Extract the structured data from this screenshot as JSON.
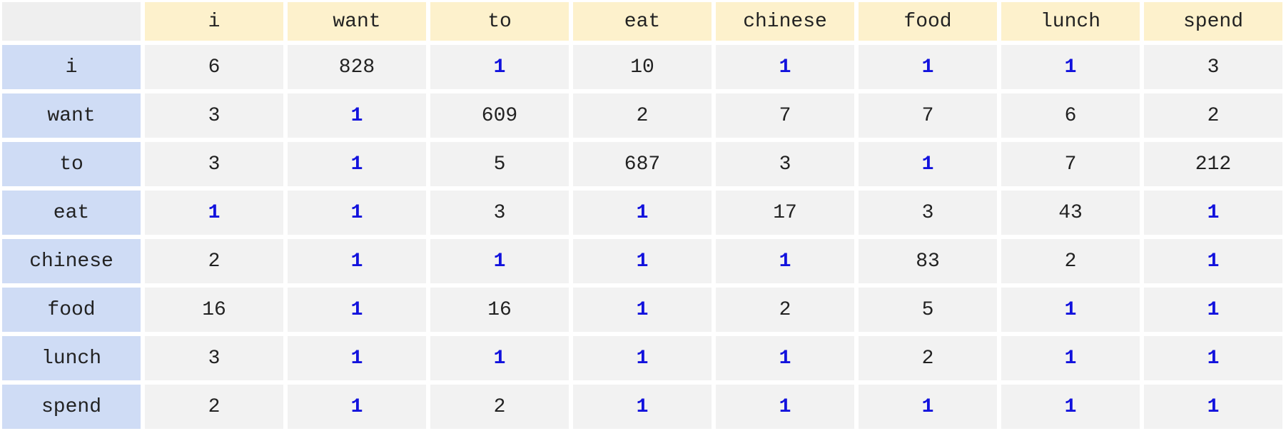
{
  "table": {
    "columns": [
      "i",
      "want",
      "to",
      "eat",
      "chinese",
      "food",
      "lunch",
      "spend"
    ],
    "rows": [
      {
        "label": "i",
        "values": [
          "6",
          "828",
          "1",
          "10",
          "1",
          "1",
          "1",
          "3"
        ]
      },
      {
        "label": "want",
        "values": [
          "3",
          "1",
          "609",
          "2",
          "7",
          "7",
          "6",
          "2"
        ]
      },
      {
        "label": "to",
        "values": [
          "3",
          "1",
          "5",
          "687",
          "3",
          "1",
          "7",
          "212"
        ]
      },
      {
        "label": "eat",
        "values": [
          "1",
          "1",
          "3",
          "1",
          "17",
          "3",
          "43",
          "1"
        ]
      },
      {
        "label": "chinese",
        "values": [
          "2",
          "1",
          "1",
          "1",
          "1",
          "83",
          "2",
          "1"
        ]
      },
      {
        "label": "food",
        "values": [
          "16",
          "1",
          "16",
          "1",
          "2",
          "5",
          "1",
          "1"
        ]
      },
      {
        "label": "lunch",
        "values": [
          "3",
          "1",
          "1",
          "1",
          "1",
          "2",
          "1",
          "1"
        ]
      },
      {
        "label": "spend",
        "values": [
          "2",
          "1",
          "2",
          "1",
          "1",
          "1",
          "1",
          "1"
        ]
      }
    ]
  },
  "colors": {
    "header_fill": "#fdf1cc",
    "row_header_fill": "#cfdcf5",
    "cell_fill": "#f2f2f2",
    "highlight_text": "#1212dd"
  }
}
